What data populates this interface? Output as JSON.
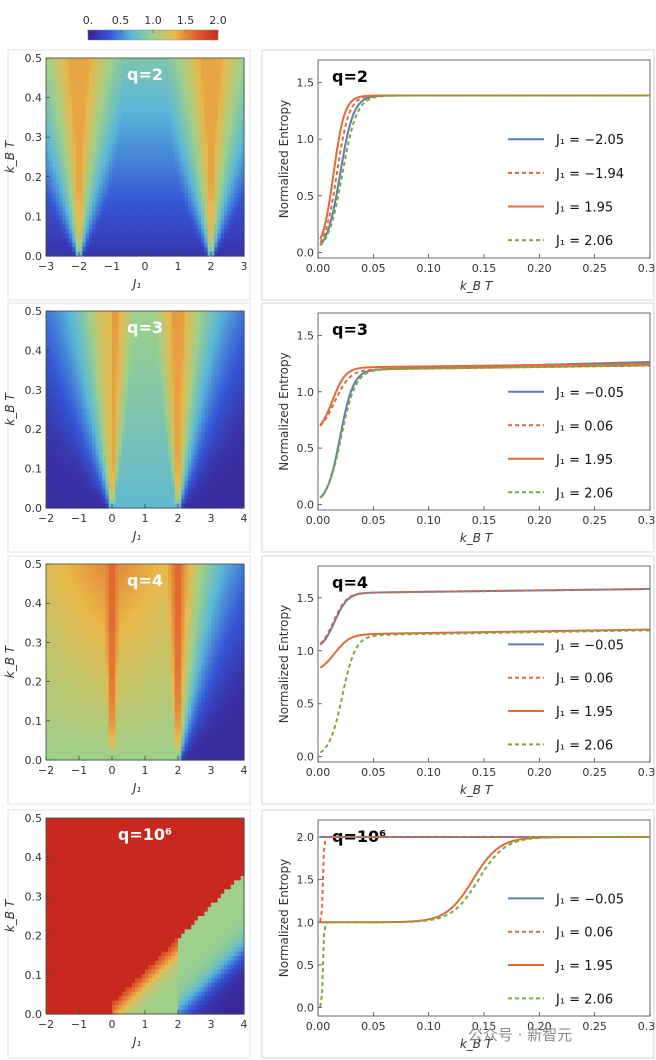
{
  "colorbar": {
    "ticks": [
      "0.",
      "0.5",
      "1.0",
      "1.5",
      "2.0"
    ],
    "colors": [
      "#3b1f8f",
      "#3557d6",
      "#5ab7d8",
      "#9ed08a",
      "#e9b84a",
      "#e0602d",
      "#c8291f"
    ]
  },
  "watermark": "公众号 · 新智元",
  "chart_data": [
    {
      "type": "heatmap",
      "q_label": "q=2",
      "xlabel": "J₁",
      "ylabel": "k_B T",
      "xlim": [
        -3,
        3
      ],
      "ylim": [
        0,
        0.5
      ],
      "x_ticks": [
        "−3",
        "−2",
        "−1",
        "0",
        "1",
        "2",
        "3"
      ],
      "y_ticks": [
        "0.0",
        "0.1",
        "0.2",
        "0.3",
        "0.4",
        "0.5"
      ],
      "critical_points": [
        -2,
        2
      ]
    },
    {
      "type": "line",
      "q_label": "q=2",
      "xlabel": "k_B T",
      "ylabel": "Normalized Entropy",
      "xlim": [
        0,
        0.3
      ],
      "ylim": [
        -0.05,
        1.7
      ],
      "x_ticks": [
        "0.00",
        "0.05",
        "0.10",
        "0.15",
        "0.20",
        "0.25",
        "0.30"
      ],
      "y_ticks": [
        "0.0",
        "0.5",
        "1.0",
        "1.5"
      ],
      "legend_position": "right",
      "series": [
        {
          "name": "J₁ = −2.05",
          "color": "#5b7fb4",
          "dash": false,
          "s0": 0.0,
          "sinf": 1.386,
          "t0": 0.02,
          "w": 0.006,
          "slope": 0
        },
        {
          "name": "J₁ = −1.94",
          "color": "#dd6b3c",
          "dash": true,
          "s0": 0.0,
          "sinf": 1.386,
          "t0": 0.017,
          "w": 0.0055,
          "slope": 0
        },
        {
          "name": "J₁ = 1.95",
          "color": "#dd6b3c",
          "dash": false,
          "s0": 0.0,
          "sinf": 1.386,
          "t0": 0.014,
          "w": 0.005,
          "slope": 0
        },
        {
          "name": "J₁ = 2.06",
          "color": "#7aaa3a",
          "dash": true,
          "s0": 0.0,
          "sinf": 1.386,
          "t0": 0.022,
          "w": 0.0065,
          "slope": 0
        }
      ]
    },
    {
      "type": "heatmap",
      "q_label": "q=3",
      "xlabel": "J₁",
      "ylabel": "k_B T",
      "xlim": [
        -2,
        4
      ],
      "ylim": [
        0,
        0.5
      ],
      "x_ticks": [
        "−2",
        "−1",
        "0",
        "1",
        "2",
        "3",
        "4"
      ],
      "y_ticks": [
        "0.0",
        "0.1",
        "0.2",
        "0.3",
        "0.4",
        "0.5"
      ],
      "critical_points": [
        0,
        2
      ]
    },
    {
      "type": "line",
      "q_label": "q=3",
      "xlabel": "k_B T",
      "ylabel": "Normalized Entropy",
      "xlim": [
        0,
        0.3
      ],
      "ylim": [
        -0.05,
        1.7
      ],
      "x_ticks": [
        "0.00",
        "0.05",
        "0.10",
        "0.15",
        "0.20",
        "0.25",
        "0.30"
      ],
      "y_ticks": [
        "0.0",
        "0.5",
        "1.0",
        "1.5"
      ],
      "legend_position": "right",
      "series": [
        {
          "name": "J₁ = −0.05",
          "color": "#5b7fb4",
          "dash": false,
          "s0": 0.0,
          "sinf": 1.2,
          "t0": 0.02,
          "w": 0.006,
          "slope": 0.65
        },
        {
          "name": "J₁ = 0.06",
          "color": "#dd6b3c",
          "dash": true,
          "s0": 0.62,
          "sinf": 1.2,
          "t0": 0.015,
          "w": 0.007,
          "slope": 0.33
        },
        {
          "name": "J₁ = 1.95",
          "color": "#dd6b3c",
          "dash": false,
          "s0": 0.62,
          "sinf": 1.22,
          "t0": 0.013,
          "w": 0.006,
          "slope": 0.3
        },
        {
          "name": "J₁ = 2.06",
          "color": "#7aaa3a",
          "dash": true,
          "s0": 0.0,
          "sinf": 1.2,
          "t0": 0.021,
          "w": 0.0065,
          "slope": 0.35
        }
      ]
    },
    {
      "type": "heatmap",
      "q_label": "q=4",
      "xlabel": "J₁",
      "ylabel": "k_B T",
      "xlim": [
        -2,
        4
      ],
      "ylim": [
        0,
        0.5
      ],
      "x_ticks": [
        "−2",
        "−1",
        "0",
        "1",
        "2",
        "3",
        "4"
      ],
      "y_ticks": [
        "0.0",
        "0.1",
        "0.2",
        "0.3",
        "0.4",
        "0.5"
      ],
      "critical_points": [
        0,
        2
      ]
    },
    {
      "type": "line",
      "q_label": "q=4",
      "xlabel": "k_B T",
      "ylabel": "Normalized Entropy",
      "xlim": [
        0,
        0.3
      ],
      "ylim": [
        -0.05,
        1.8
      ],
      "x_ticks": [
        "0.00",
        "0.05",
        "0.10",
        "0.15",
        "0.20",
        "0.25",
        "0.30"
      ],
      "y_ticks": [
        "0.0",
        "0.5",
        "1.0",
        "1.5"
      ],
      "legend_position": "right",
      "series": [
        {
          "name": "J₁ = −0.05",
          "color": "#5b7fb4",
          "dash": false,
          "s0": 1.0,
          "sinf": 1.55,
          "t0": 0.015,
          "w": 0.006,
          "slope": 0.33
        },
        {
          "name": "J₁ = 0.06",
          "color": "#dd6b3c",
          "dash": true,
          "s0": 1.0,
          "sinf": 1.55,
          "t0": 0.014,
          "w": 0.006,
          "slope": 0.33
        },
        {
          "name": "J₁ = 1.95",
          "color": "#dd6b3c",
          "dash": false,
          "s0": 0.79,
          "sinf": 1.16,
          "t0": 0.015,
          "w": 0.007,
          "slope": 0.4
        },
        {
          "name": "J₁ = 2.06",
          "color": "#7aaa3a",
          "dash": true,
          "s0": 0.0,
          "sinf": 1.15,
          "t0": 0.022,
          "w": 0.006,
          "slope": 0.43
        }
      ]
    },
    {
      "type": "heatmap",
      "q_label": "q=10⁶",
      "xlabel": "J₁",
      "ylabel": "k_B T",
      "xlim": [
        -2,
        4
      ],
      "ylim": [
        0,
        0.5
      ],
      "x_ticks": [
        "−2",
        "−1",
        "0",
        "1",
        "2",
        "3",
        "4"
      ],
      "y_ticks": [
        "0.0",
        "0.1",
        "0.2",
        "0.3",
        "0.4",
        "0.5"
      ],
      "critical_points": [
        0,
        2
      ]
    },
    {
      "type": "line",
      "q_label": "q=10⁶",
      "xlabel": "k_B T",
      "ylabel": "Normalized Entropy",
      "xlim": [
        0,
        0.3
      ],
      "ylim": [
        -0.1,
        2.2
      ],
      "x_ticks": [
        "0.00",
        "0.05",
        "0.10",
        "0.15",
        "0.20",
        "0.25",
        "0.30"
      ],
      "y_ticks": [
        "0.0",
        "0.5",
        "1.0",
        "1.5",
        "2.0"
      ],
      "legend_position": "right",
      "series": [
        {
          "name": "J₁ = −0.05",
          "color": "#5b7fb4",
          "dash": false,
          "s0": 2.0,
          "sinf": 2.0,
          "t0": 0.01,
          "w": 0.005,
          "slope": 0
        },
        {
          "name": "J₁ = 0.06",
          "color": "#dd6b3c",
          "dash": true,
          "s0": 1.0,
          "sinf": 2.0,
          "t0": 0.0045,
          "w": 0.0005,
          "slope": 0
        },
        {
          "name": "J₁ = 1.95",
          "color": "#dd6b3c",
          "dash": false,
          "s0": 1.0,
          "sinf": 2.0,
          "t0": 0.14,
          "w": 0.012,
          "slope": 0,
          "pre": {
            "t0": 0.0,
            "w": 0.001
          }
        },
        {
          "name": "J₁ = 2.06",
          "color": "#7aaa3a",
          "dash": true,
          "s0": 1.0,
          "sinf": 2.0,
          "t0": 0.145,
          "w": 0.012,
          "slope": 0,
          "pre": {
            "t0": 0.0045,
            "w": 0.0005
          }
        }
      ]
    }
  ]
}
